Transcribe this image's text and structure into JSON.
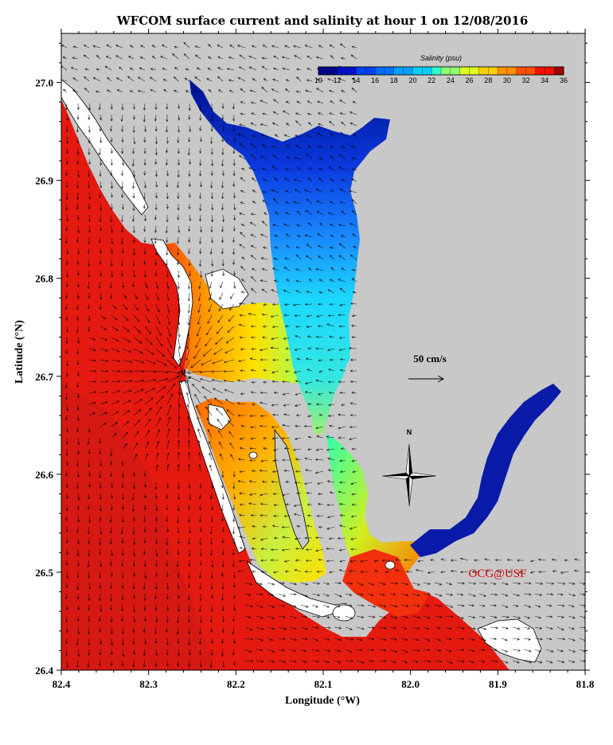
{
  "title": "WFCOM surface current and salinity at hour 1 on 12/08/2016",
  "xlabel": "Longitude (°W)",
  "ylabel": "Latitude (°N)",
  "x_ticks": [
    "82.4",
    "82.3",
    "82.2",
    "82.1",
    "82.0",
    "81.9",
    "81.8"
  ],
  "y_ticks": [
    "26.4",
    "26.5",
    "26.6",
    "26.7",
    "26.8",
    "26.9",
    "27.0"
  ],
  "x_range": [
    82.4,
    81.8
  ],
  "y_range": [
    26.4,
    27.05
  ],
  "colorbar": {
    "title": "Salinity (psu)",
    "min": 10,
    "max": 36,
    "labels": [
      "10",
      "12",
      "14",
      "16",
      "18",
      "20",
      "22",
      "24",
      "26",
      "28",
      "30",
      "32",
      "34",
      "36"
    ],
    "colors": [
      "#00008b",
      "#0010c8",
      "#0040f0",
      "#0070ff",
      "#00a0ff",
      "#00d0ff",
      "#30ffd0",
      "#90ff70",
      "#e0ff20",
      "#ffd000",
      "#ff9000",
      "#ff5000",
      "#f01000",
      "#a00000"
    ]
  },
  "scale_arrow": {
    "label": "50 cm/s",
    "speed_cm_s": 50
  },
  "compass": {
    "label": "N"
  },
  "credit": {
    "text": "OCG@USF",
    "color": "#e00000"
  },
  "colors": {
    "land": "#c8c8c8",
    "gulf": "#e41a10",
    "coast_light": "#ffffff"
  }
}
